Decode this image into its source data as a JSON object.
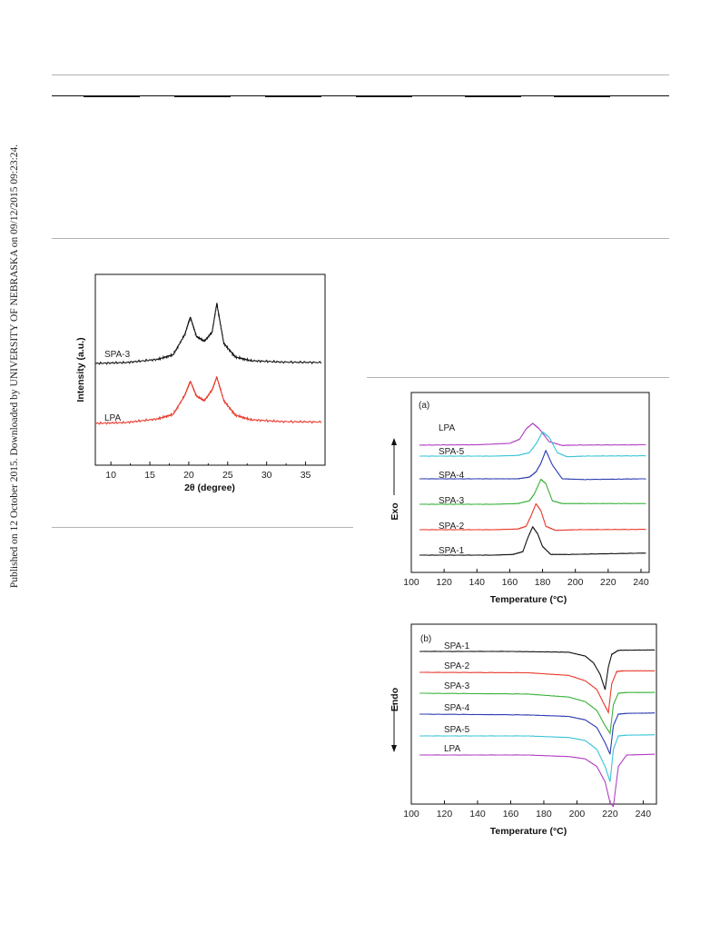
{
  "sidebar_note": "Published on 12 October 2015. Downloaded by UNIVERSITY OF NEBRASKA on 09/12/2015 09:23:24.",
  "colors": {
    "SPA-1": "#111111",
    "SPA-2": "#e8392c",
    "SPA-3": "#3bb23b",
    "SPA-4": "#2c3cb0",
    "SPA-5": "#3bc4d8",
    "LPA": "#b23fc4",
    "xrd_SPA-3": "#111111",
    "xrd_LPA": "#e8392c"
  },
  "chart_data": [
    {
      "id": "xrd",
      "type": "line",
      "xlabel": "2θ (degree)",
      "ylabel": "Intensity (a.u.)",
      "xlim": [
        8,
        37.5
      ],
      "xticks": [
        10,
        15,
        20,
        25,
        30,
        35
      ],
      "series": [
        {
          "name": "SPA-3",
          "x": [
            8,
            12,
            16,
            18,
            19.5,
            20.2,
            21,
            22,
            23,
            23.6,
            24.5,
            26,
            28,
            32,
            37
          ],
          "y": [
            0.86,
            0.88,
            0.95,
            1.05,
            1.5,
            1.88,
            1.45,
            1.35,
            1.55,
            2.18,
            1.3,
            1.0,
            0.92,
            0.89,
            0.88
          ]
        },
        {
          "name": "LPA",
          "x": [
            8,
            12,
            16,
            18,
            19.5,
            20.2,
            21,
            22,
            23,
            23.6,
            24.5,
            26,
            28,
            32,
            37
          ],
          "y": [
            0.0,
            0.02,
            0.1,
            0.2,
            0.62,
            0.93,
            0.6,
            0.5,
            0.74,
            1.02,
            0.5,
            0.18,
            0.08,
            0.04,
            0.03
          ]
        }
      ]
    },
    {
      "id": "dsc-a",
      "type": "line",
      "panel": "(a)",
      "xlabel": "Temperature (°C)",
      "ylabel": "Exo",
      "xlim": [
        100,
        245
      ],
      "xticks": [
        100,
        120,
        140,
        160,
        180,
        200,
        220,
        240
      ],
      "series": [
        {
          "name": "LPA",
          "x": [
            105,
            140,
            160,
            166,
            170,
            174,
            178,
            184,
            192,
            200,
            243
          ],
          "y": [
            0.45,
            0.46,
            0.5,
            0.62,
            0.92,
            1.08,
            0.92,
            0.55,
            0.44,
            0.45,
            0.46
          ]
        },
        {
          "name": "SPA-5",
          "x": [
            105,
            150,
            165,
            172,
            176,
            180,
            184,
            189,
            195,
            205,
            243
          ],
          "y": [
            0.0,
            0.0,
            0.02,
            0.1,
            0.35,
            0.7,
            0.55,
            0.1,
            -0.02,
            0.0,
            0.01
          ]
        },
        {
          "name": "SPA-4",
          "x": [
            105,
            150,
            165,
            172,
            176,
            179,
            182,
            186,
            192,
            205,
            243
          ],
          "y": [
            0.0,
            0.0,
            0.0,
            0.05,
            0.2,
            0.45,
            0.82,
            0.4,
            0.0,
            -0.02,
            0.0
          ]
        },
        {
          "name": "SPA-3",
          "x": [
            105,
            150,
            165,
            172,
            175,
            179,
            182,
            186,
            192,
            205,
            243
          ],
          "y": [
            0.0,
            0.0,
            0.02,
            0.1,
            0.3,
            0.72,
            0.6,
            0.1,
            0.02,
            0.02,
            0.02
          ]
        },
        {
          "name": "SPA-2",
          "x": [
            105,
            150,
            165,
            170,
            173,
            176,
            179,
            182,
            188,
            200,
            243
          ],
          "y": [
            0.0,
            0.0,
            0.02,
            0.1,
            0.4,
            0.75,
            0.55,
            0.1,
            -0.02,
            0.0,
            0.01
          ]
        },
        {
          "name": "SPA-1",
          "x": [
            105,
            150,
            162,
            168,
            171,
            174,
            177,
            180,
            185,
            195,
            243
          ],
          "y": [
            0.0,
            0.0,
            0.02,
            0.1,
            0.5,
            0.82,
            0.62,
            0.25,
            0.02,
            0.02,
            0.06
          ]
        }
      ]
    },
    {
      "id": "dsc-b",
      "type": "line",
      "panel": "(b)",
      "xlabel": "Temperature (°C)",
      "ylabel": "Endo",
      "xlim": [
        100,
        248
      ],
      "xticks": [
        100,
        120,
        140,
        160,
        180,
        200,
        220,
        240
      ],
      "series": [
        {
          "name": "SPA-1",
          "x": [
            105,
            160,
            195,
            205,
            210,
            214,
            217,
            219,
            221,
            225,
            247
          ],
          "y": [
            0.0,
            0.0,
            -0.02,
            -0.12,
            -0.3,
            -0.6,
            -1.0,
            -0.4,
            -0.08,
            0.03,
            0.04
          ]
        },
        {
          "name": "SPA-2",
          "x": [
            105,
            170,
            195,
            205,
            212,
            216,
            219,
            221,
            224,
            228,
            247
          ],
          "y": [
            0.0,
            -0.01,
            -0.08,
            -0.22,
            -0.45,
            -0.8,
            -1.05,
            -0.3,
            0.02,
            0.04,
            0.04
          ]
        },
        {
          "name": "SPA-3",
          "x": [
            105,
            170,
            195,
            205,
            212,
            217,
            220,
            222,
            225,
            230,
            247
          ],
          "y": [
            0.0,
            -0.02,
            -0.1,
            -0.22,
            -0.45,
            -0.85,
            -1.05,
            -0.3,
            0.0,
            0.02,
            0.02
          ]
        },
        {
          "name": "SPA-4",
          "x": [
            105,
            170,
            195,
            205,
            212,
            217,
            220,
            222,
            225,
            230,
            247
          ],
          "y": [
            0.0,
            -0.02,
            -0.06,
            -0.15,
            -0.35,
            -0.75,
            -1.05,
            -0.3,
            0.0,
            0.02,
            0.03
          ]
        },
        {
          "name": "SPA-5",
          "x": [
            105,
            170,
            195,
            205,
            212,
            217,
            220,
            222,
            225,
            230,
            247
          ],
          "y": [
            0.0,
            0.0,
            -0.04,
            -0.12,
            -0.35,
            -0.8,
            -1.2,
            -0.35,
            0.0,
            0.02,
            0.03
          ]
        },
        {
          "name": "LPA",
          "x": [
            105,
            170,
            195,
            205,
            212,
            217,
            220,
            222,
            225,
            230,
            247
          ],
          "y": [
            0.0,
            0.0,
            -0.04,
            -0.1,
            -0.3,
            -0.7,
            -1.25,
            -1.35,
            -0.3,
            0.0,
            0.02
          ]
        }
      ]
    }
  ]
}
